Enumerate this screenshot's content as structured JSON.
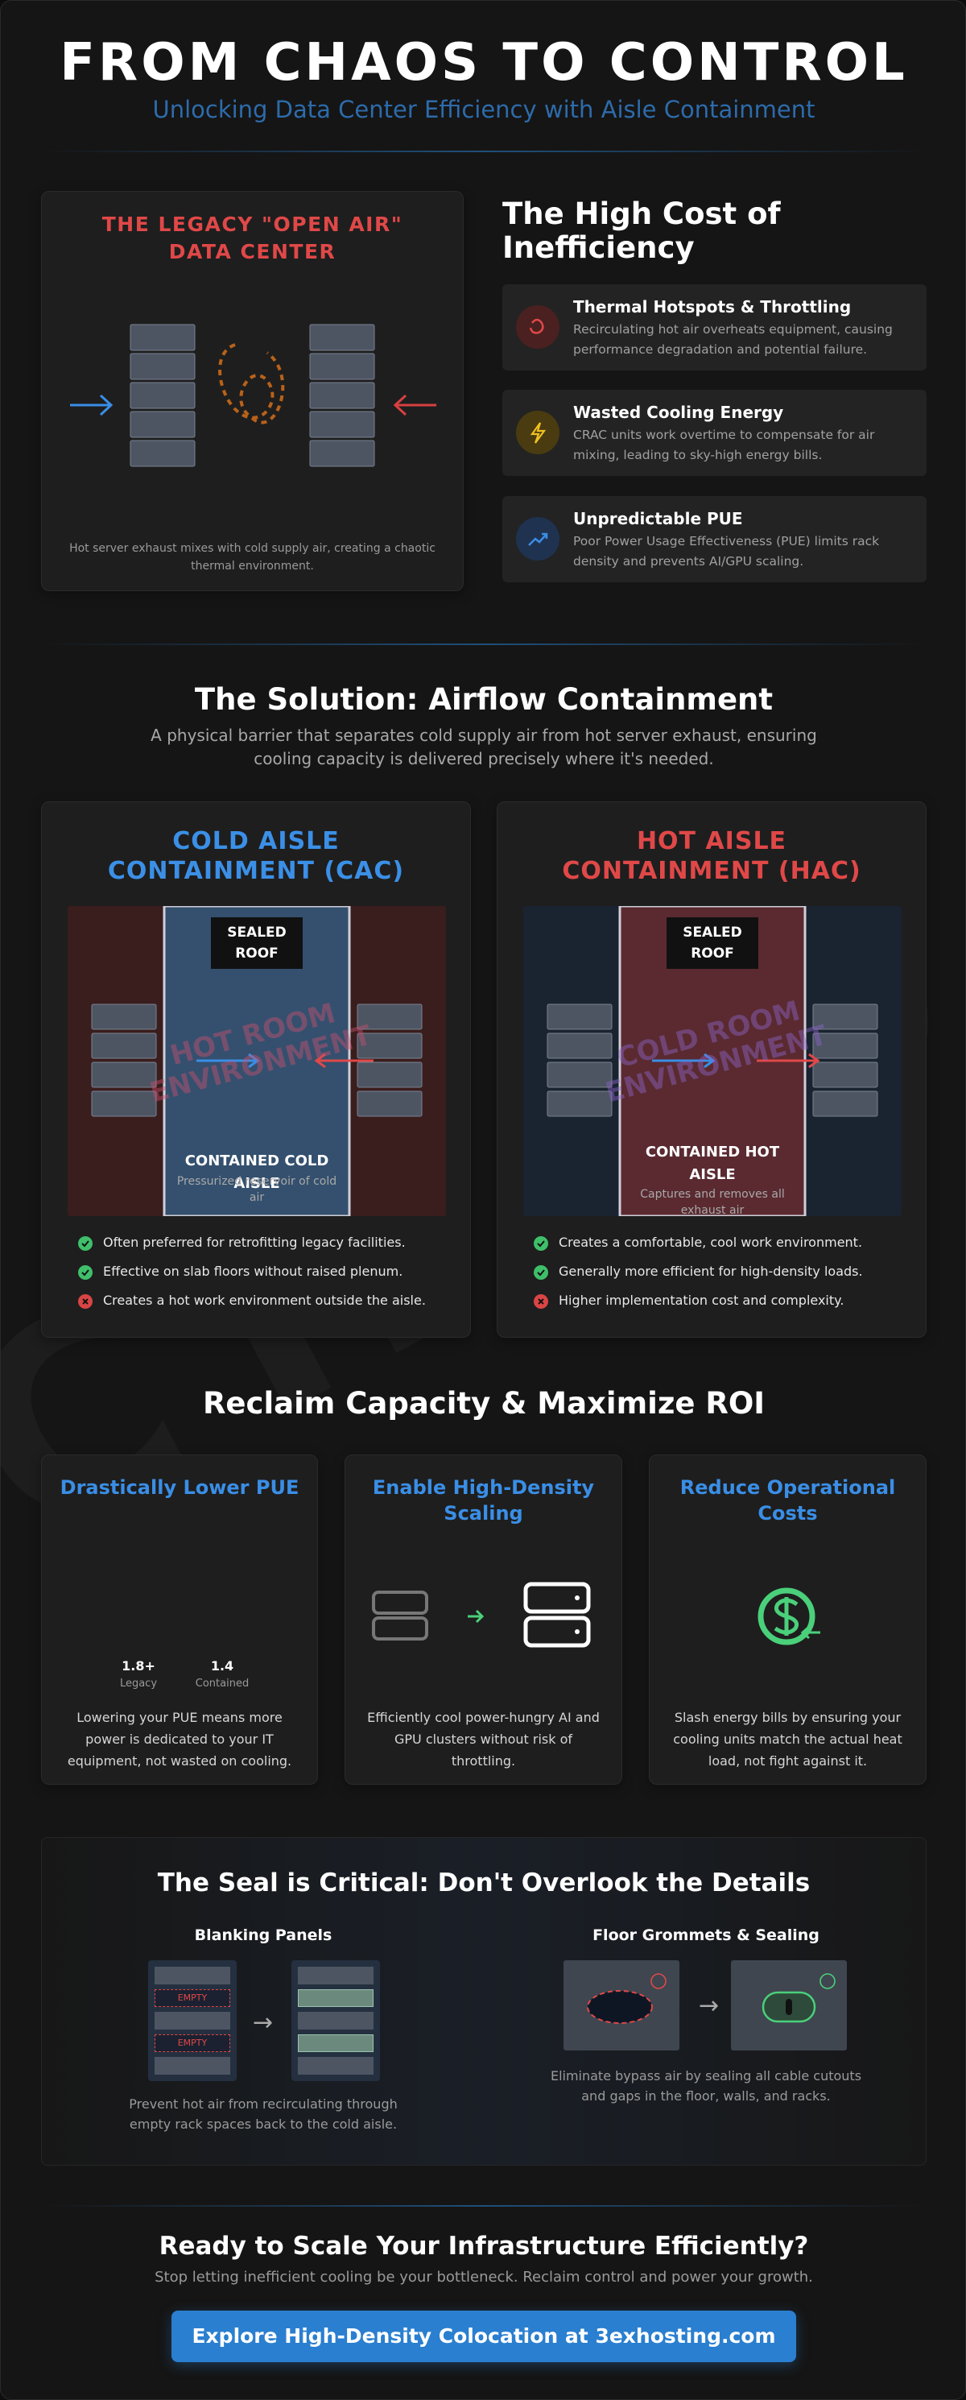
{
  "watermark": "CHAOS",
  "header": {
    "title": "FROM CHAOS TO CONTROL",
    "subtitle": "Unlocking Data Center Efficiency with Aisle Containment"
  },
  "legacy": {
    "title": "THE LEGACY \"OPEN AIR\" DATA CENTER",
    "caption": "Hot server exhaust mixes with cold supply air, creating a chaotic thermal environment."
  },
  "cost": {
    "title": "The High Cost of Inefficiency",
    "items": [
      {
        "title": "Thermal Hotspots & Throttling",
        "text": "Recirculating hot air overheats equipment, causing performance degradation and potential failure."
      },
      {
        "title": "Wasted Cooling Energy",
        "text": "CRAC units work overtime to compensate for air mixing, leading to sky-high energy bills."
      },
      {
        "title": "Unpredictable PUE",
        "text": "Poor Power Usage Effectiveness (PUE) limits rack density and prevents AI/GPU scaling."
      }
    ]
  },
  "solution": {
    "title": "The Solution: Airflow Containment",
    "description": "A physical barrier that separates cold supply air from hot server exhaust, ensuring cooling capacity is delivered precisely where it's needed."
  },
  "containment": [
    {
      "title": "COLD AISLE CONTAINMENT (CAC)",
      "color": "#3b8fe6",
      "aisle_color": "#34506e",
      "room_color": "#3a1d1d",
      "roof": "SEALED ROOF",
      "room_label": "HOT ROOM ENVIRONMENT",
      "aisle_label": "CONTAINED COLD AISLE",
      "aisle_note": "Pressurized reservoir of cold air",
      "points": [
        {
          "text": "Often preferred for retrofitting legacy facilities.",
          "ok": true
        },
        {
          "text": "Effective on slab floors without raised plenum.",
          "ok": true
        },
        {
          "text": "Creates a hot work environment outside the aisle.",
          "ok": false
        }
      ]
    },
    {
      "title": "HOT AISLE CONTAINMENT (HAC)",
      "color": "#e04848",
      "aisle_color": "#5a2a30",
      "room_color": "#1a2330",
      "roof": "SEALED ROOF",
      "room_label": "COLD ROOM ENVIRONMENT",
      "aisle_label": "CONTAINED HOT AISLE",
      "aisle_note": "Captures and removes all exhaust air",
      "points": [
        {
          "text": "Creates a comfortable, cool work environment.",
          "ok": true
        },
        {
          "text": "Generally more efficient for high-density loads.",
          "ok": true
        },
        {
          "text": "Higher implementation cost and complexity.",
          "ok": false
        }
      ]
    }
  ],
  "roi": {
    "title": "Reclaim Capacity & Maximize ROI",
    "cards": [
      {
        "title": "Drastically Lower PUE",
        "text": "Lowering your PUE means more power is dedicated to your IT equipment, not wasted on cooling."
      },
      {
        "title": "Enable High-Density Scaling",
        "text": "Efficiently cool power-hungry AI and GPU clusters without risk of throttling."
      },
      {
        "title": "Reduce Operational Costs",
        "text": "Slash energy bills by ensuring your cooling units match the actual heat load, not fight against it."
      }
    ],
    "pue": [
      {
        "value": "1.8+",
        "label": "Legacy"
      },
      {
        "value": "1.4",
        "label": "Contained"
      }
    ]
  },
  "seal": {
    "title": "The Seal is Critical: Don't Overlook the Details",
    "empty_label": "EMPTY",
    "items": [
      {
        "title": "Blanking Panels",
        "text": "Prevent hot air from recirculating through empty rack spaces back to the cold aisle."
      },
      {
        "title": "Floor Grommets & Sealing",
        "text": "Eliminate bypass air by sealing all cable cutouts and gaps in the floor, walls, and racks."
      }
    ]
  },
  "cta": {
    "title": "Ready to Scale Your Infrastructure Efficiently?",
    "text": "Stop letting inefficient cooling be your bottleneck. Reclaim control and power your growth.",
    "button": "Explore High-Density Colocation at 3exhosting.com"
  }
}
